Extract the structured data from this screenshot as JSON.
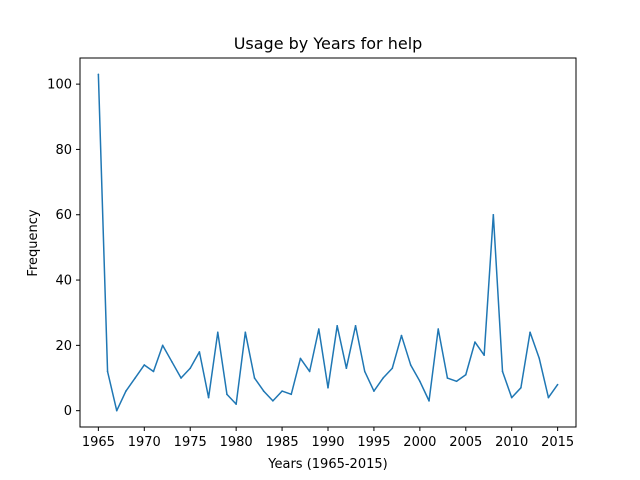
{
  "chart_data": {
    "type": "line",
    "title": "Usage by Years for help",
    "xlabel": "Years (1965-2015)",
    "ylabel": "Frequency",
    "xlim": [
      1963,
      2017
    ],
    "ylim": [
      -5,
      108
    ],
    "xticks": [
      1965,
      1970,
      1975,
      1980,
      1985,
      1990,
      1995,
      2000,
      2005,
      2010,
      2015
    ],
    "yticks": [
      0,
      20,
      40,
      60,
      80,
      100
    ],
    "grid": false,
    "series": [
      {
        "color": "#1f77b4",
        "x": [
          1965,
          1966,
          1967,
          1968,
          1969,
          1970,
          1971,
          1972,
          1973,
          1974,
          1975,
          1976,
          1977,
          1978,
          1979,
          1980,
          1981,
          1982,
          1983,
          1984,
          1985,
          1986,
          1987,
          1988,
          1989,
          1990,
          1991,
          1992,
          1993,
          1994,
          1995,
          1996,
          1997,
          1998,
          1999,
          2000,
          2001,
          2002,
          2003,
          2004,
          2005,
          2006,
          2007,
          2008,
          2009,
          2010,
          2011,
          2012,
          2013,
          2014,
          2015
        ],
        "y": [
          103,
          12,
          0,
          6,
          10,
          14,
          12,
          20,
          15,
          10,
          13,
          18,
          4,
          24,
          5,
          2,
          24,
          10,
          6,
          3,
          6,
          5,
          16,
          12,
          25,
          7,
          26,
          13,
          26,
          12,
          6,
          10,
          13,
          23,
          14,
          9,
          3,
          25,
          10,
          9,
          11,
          21,
          17,
          60,
          12,
          4,
          7,
          24,
          16,
          4,
          8
        ]
      }
    ]
  }
}
